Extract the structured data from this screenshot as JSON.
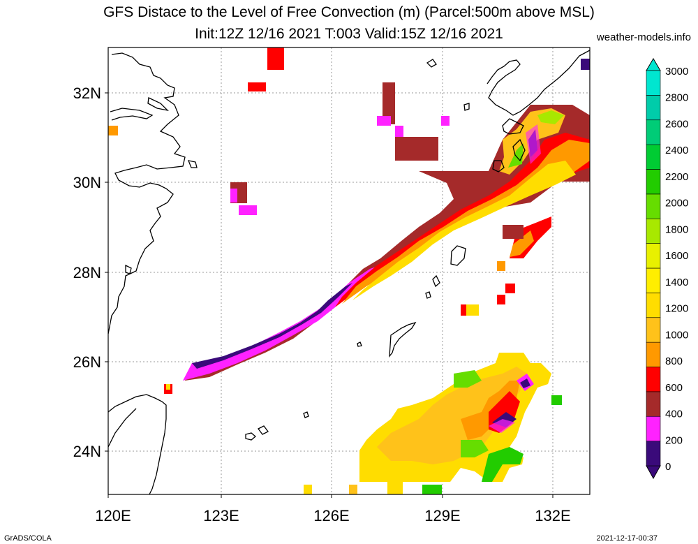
{
  "title": {
    "line1": "GFS Distace to the Level of Free Convection (m) (Parcel:500m above MSL)",
    "line2": "Init:12Z 12/16 2021 T:003 Valid:15Z 12/16 2021"
  },
  "source": "weather-models.info",
  "footer": {
    "left": "GrADS/COLA",
    "right": "2021-12-17-00:37"
  },
  "axes": {
    "lon_ticks": [
      "120E",
      "123E",
      "126E",
      "129E",
      "132E"
    ],
    "lat_ticks": [
      "32N",
      "30N",
      "28N",
      "26N",
      "24N"
    ]
  },
  "colorbar": {
    "labels": [
      "0",
      "200",
      "400",
      "600",
      "800",
      "1000",
      "1200",
      "1400",
      "1600",
      "1800",
      "2000",
      "2200",
      "2400",
      "2600",
      "2800",
      "3000"
    ],
    "colors": [
      "#3a0a7a",
      "#ff22ff",
      "#a52a2a",
      "#ff0000",
      "#ff9900",
      "#ffc21a",
      "#ffdd00",
      "#ffee00",
      "#e8f000",
      "#a8e800",
      "#66dd00",
      "#22cc00",
      "#00cc33",
      "#00cc77",
      "#00ccaa",
      "#00e6d0"
    ]
  }
}
